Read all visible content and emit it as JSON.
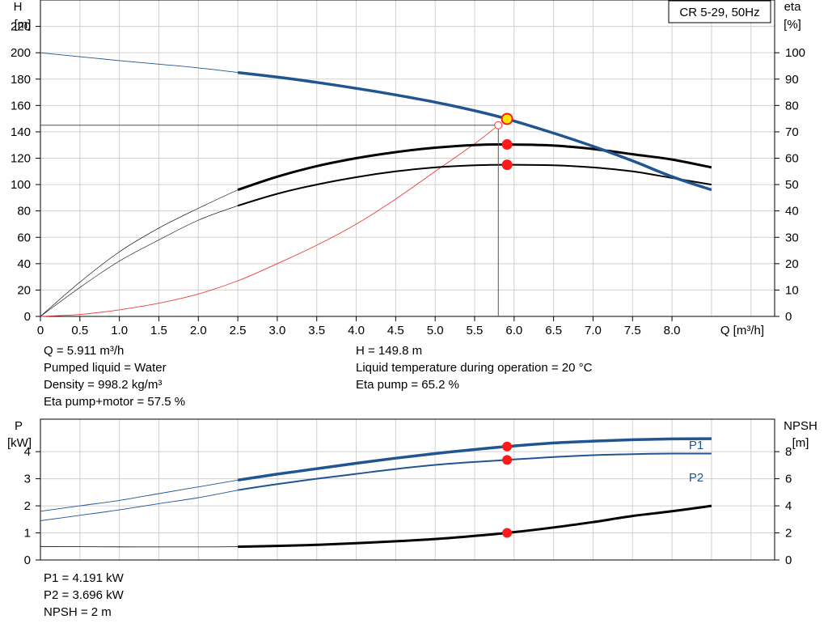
{
  "chart_data": [
    {
      "type": "line",
      "badge": "CR 5-29, 50Hz",
      "xlabel": "Q [m³/h]",
      "x_ticks": [
        "0",
        "0.5",
        "1.0",
        "1.5",
        "2.0",
        "2.5",
        "3.0",
        "3.5",
        "4.0",
        "4.5",
        "5.0",
        "5.5",
        "6.0",
        "6.5",
        "7.0",
        "7.5",
        "8.0"
      ],
      "xlim": [
        0,
        9.3
      ],
      "ylabel_left": [
        "H",
        "[m]"
      ],
      "ylabel_right": [
        "eta",
        "[%]"
      ],
      "y_left_ticks": [
        "0",
        "20",
        "40",
        "60",
        "80",
        "100",
        "120",
        "140",
        "160",
        "180",
        "200",
        "220"
      ],
      "y_left_lim": [
        0,
        240
      ],
      "y_right_ticks": [
        "0",
        "10",
        "20",
        "30",
        "40",
        "50",
        "60",
        "70",
        "80",
        "90",
        "100"
      ],
      "y_right_lim": [
        0,
        120
      ],
      "grid": true,
      "series": [
        {
          "role": "head",
          "axis": "left",
          "color": "#1f5591",
          "x": [
            0,
            0.5,
            1.0,
            1.5,
            2.0,
            2.5,
            3.0,
            3.5,
            4.0,
            4.5,
            5.0,
            5.5,
            5.911,
            6.5,
            7.0,
            7.5,
            8.0,
            8.5
          ],
          "y": [
            200,
            197,
            194,
            191.3,
            188.5,
            185,
            181.5,
            177.5,
            173,
            168,
            162.5,
            156,
            149.8,
            139,
            129,
            118,
            106,
            96
          ]
        },
        {
          "role": "eta-pump",
          "axis": "right",
          "x": [
            0,
            0.5,
            1.0,
            1.5,
            2.0,
            2.5,
            3.0,
            3.5,
            4.0,
            4.5,
            5.0,
            5.5,
            5.911,
            6.5,
            7.0,
            7.5,
            8.0,
            8.5
          ],
          "y": [
            0,
            13,
            24.5,
            33.5,
            41,
            48,
            53,
            57,
            60,
            62.3,
            64,
            65,
            65.2,
            64.8,
            63.5,
            61.5,
            59.5,
            56.5
          ]
        },
        {
          "role": "eta-pump-motor",
          "axis": "right",
          "x": [
            0,
            0.5,
            1.0,
            1.5,
            2.0,
            2.5,
            3.0,
            3.5,
            4.0,
            4.5,
            5.0,
            5.5,
            5.911,
            6.5,
            7.0,
            7.5,
            8.0,
            8.5
          ],
          "y": [
            0,
            11,
            21,
            29,
            36.5,
            42,
            46.5,
            50,
            52.8,
            55,
            56.5,
            57.3,
            57.5,
            57.3,
            56.5,
            55,
            52.5,
            50
          ]
        },
        {
          "role": "system",
          "axis": "left",
          "color": "#e8413a",
          "x": [
            0,
            0.5,
            1.0,
            1.5,
            2.0,
            2.5,
            3.0,
            3.5,
            4.0,
            4.5,
            5.0,
            5.5,
            5.8
          ],
          "y": [
            0,
            1.5,
            5,
            10,
            17,
            27,
            40,
            54,
            70,
            89,
            110,
            131,
            145
          ]
        }
      ],
      "duty_point": {
        "x": 5.911,
        "y": 149.8,
        "eta_pump": 65.2,
        "eta_total": 57.5
      },
      "system_point": {
        "x": 5.8,
        "y": 145
      }
    },
    {
      "type": "line",
      "ylabel_left": [
        "P",
        "[kW]"
      ],
      "ylabel_right": [
        "NPSH",
        "[m]"
      ],
      "y_left_ticks": [
        "0",
        "1",
        "2",
        "3",
        "4"
      ],
      "y_left_lim": [
        0,
        5.2
      ],
      "y_right_ticks": [
        "0",
        "2",
        "4",
        "6",
        "8"
      ],
      "y_right_lim": [
        0,
        10.4
      ],
      "grid": true,
      "series": [
        {
          "name": "P1",
          "axis": "left",
          "color": "#1f5591",
          "x": [
            0,
            0.5,
            1.0,
            1.5,
            2.0,
            2.5,
            3.0,
            3.5,
            4.0,
            4.5,
            5.0,
            5.5,
            5.911,
            6.5,
            7.0,
            7.5,
            8.0,
            8.5
          ],
          "y": [
            1.8,
            2.0,
            2.2,
            2.45,
            2.7,
            2.95,
            3.17,
            3.37,
            3.57,
            3.76,
            3.93,
            4.08,
            4.191,
            4.32,
            4.39,
            4.44,
            4.47,
            4.48
          ]
        },
        {
          "name": "P2",
          "axis": "left",
          "color": "#1f5591",
          "x": [
            0,
            0.5,
            1.0,
            1.5,
            2.0,
            2.5,
            3.0,
            3.5,
            4.0,
            4.5,
            5.0,
            5.5,
            5.911,
            6.5,
            7.0,
            7.5,
            8.0,
            8.5
          ],
          "y": [
            1.45,
            1.65,
            1.85,
            2.08,
            2.3,
            2.58,
            2.8,
            3.0,
            3.18,
            3.36,
            3.51,
            3.62,
            3.696,
            3.8,
            3.87,
            3.91,
            3.93,
            3.93
          ]
        },
        {
          "role": "npsh",
          "axis": "right",
          "x": [
            0,
            0.5,
            1.0,
            1.5,
            2.0,
            2.5,
            3.0,
            3.5,
            4.0,
            4.5,
            5.0,
            5.5,
            5.911,
            6.5,
            7.0,
            7.5,
            8.0,
            8.5
          ],
          "y": [
            1.0,
            0.98,
            0.97,
            0.96,
            0.96,
            0.98,
            1.04,
            1.12,
            1.24,
            1.38,
            1.55,
            1.78,
            2.0,
            2.4,
            2.8,
            3.25,
            3.6,
            4.0
          ]
        }
      ],
      "operating_point": {
        "x": 5.911,
        "P1": 4.191,
        "P2": 3.696,
        "npsh": 2
      }
    }
  ],
  "info_top_left": [
    "Q = 5.911 m³/h",
    "Pumped liquid = Water",
    "Density = 998.2 kg/m³",
    "Eta pump+motor = 57.5 %"
  ],
  "info_top_right": [
    "H = 149.8 m",
    "Liquid temperature during operation = 20 °C",
    "Eta pump = 65.2 %"
  ],
  "info_bottom": [
    "P1 = 4.191 kW",
    "P2 = 3.696 kW",
    "NPSH = 2 m"
  ]
}
